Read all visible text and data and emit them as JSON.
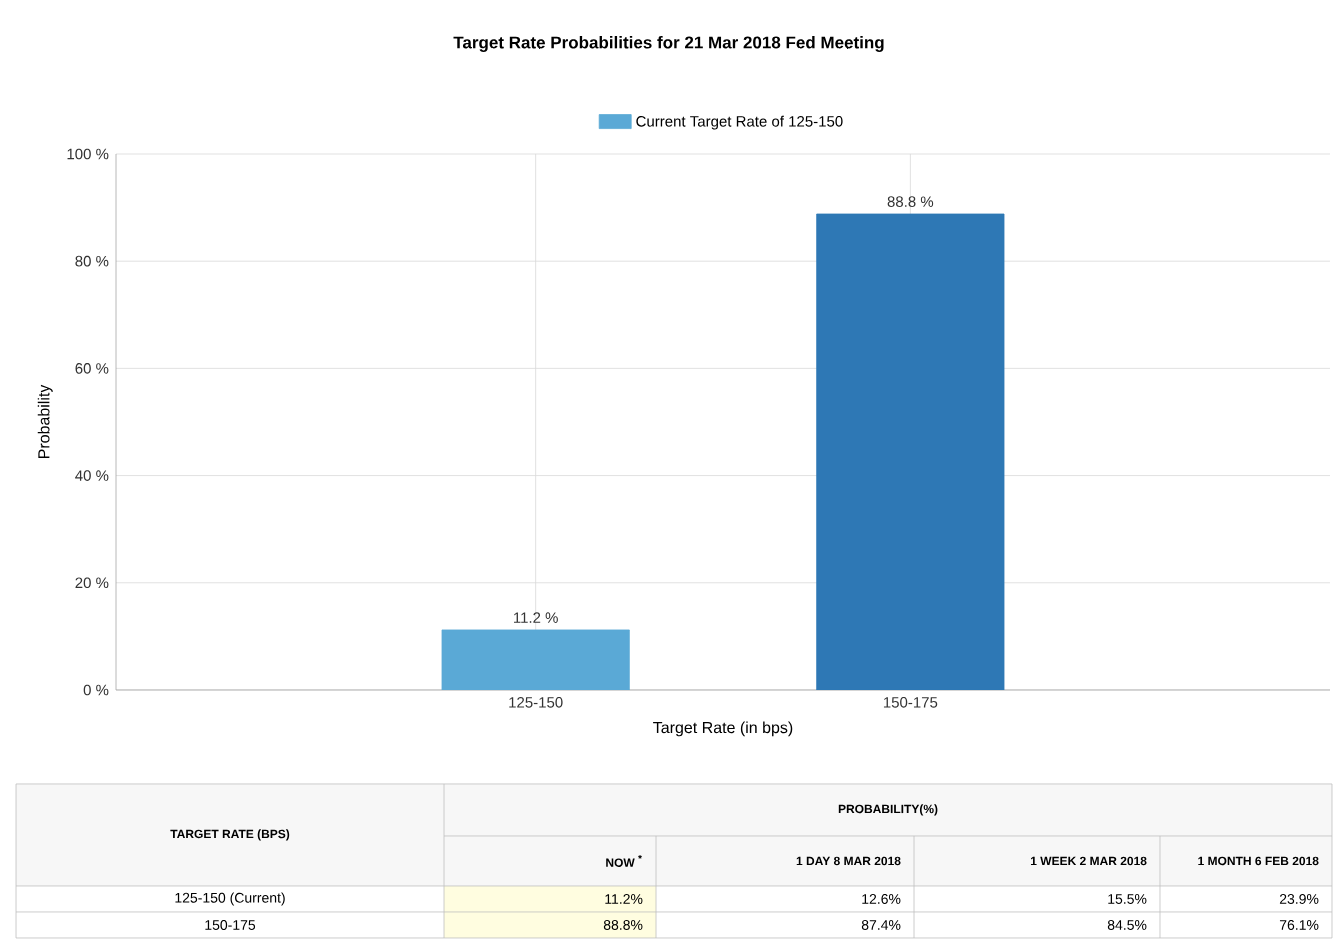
{
  "chart_data": [
    {
      "type": "bar",
      "title": "Target Rate Probabilities for 21 Mar 2018 Fed Meeting",
      "xlabel": "Target Rate (in bps)",
      "ylabel": "Probability",
      "categories": [
        "125-150",
        "150-175"
      ],
      "series": [
        {
          "name": "Current Target Rate of 125-150",
          "color": "#5aa9d6",
          "values": [
            11.2,
            null
          ],
          "value_labels": [
            "11.2 %",
            null
          ]
        },
        {
          "color": "#2e78b5",
          "values": [
            null,
            88.8
          ],
          "value_labels": [
            null,
            "88.8 %"
          ]
        }
      ],
      "ylim": [
        0,
        100
      ],
      "yticks": [
        {
          "value": 0,
          "label": "0 %"
        },
        {
          "value": 20,
          "label": "20 %"
        },
        {
          "value": 40,
          "label": "40 %"
        },
        {
          "value": 60,
          "label": "60 %"
        },
        {
          "value": 80,
          "label": "80 %"
        },
        {
          "value": 100,
          "label": "100 %"
        }
      ],
      "grid": true,
      "legend": "top"
    },
    {
      "type": "other",
      "title": "PROBABILITY(%)",
      "ylabel": "TARGET RATE (BPS)",
      "categories": [
        "NOW $^{*}$",
        "1 DAY 8 MAR 2018",
        "1 WEEK 2 MAR 2018",
        "1 MONTH 6 FEB 2018"
      ],
      "series": [
        {
          "name": "125-150 (Current)",
          "values": [
            11.2,
            12.6,
            15.5,
            23.9
          ],
          "value_labels": [
            "11.2%",
            "12.6%",
            "15.5%",
            "23.9%"
          ]
        },
        {
          "name": "150-175",
          "values": [
            88.8,
            87.4,
            84.5,
            76.1
          ],
          "value_labels": [
            "88.8%",
            "87.4%",
            "84.5%",
            "76.1%"
          ]
        }
      ]
    }
  ]
}
